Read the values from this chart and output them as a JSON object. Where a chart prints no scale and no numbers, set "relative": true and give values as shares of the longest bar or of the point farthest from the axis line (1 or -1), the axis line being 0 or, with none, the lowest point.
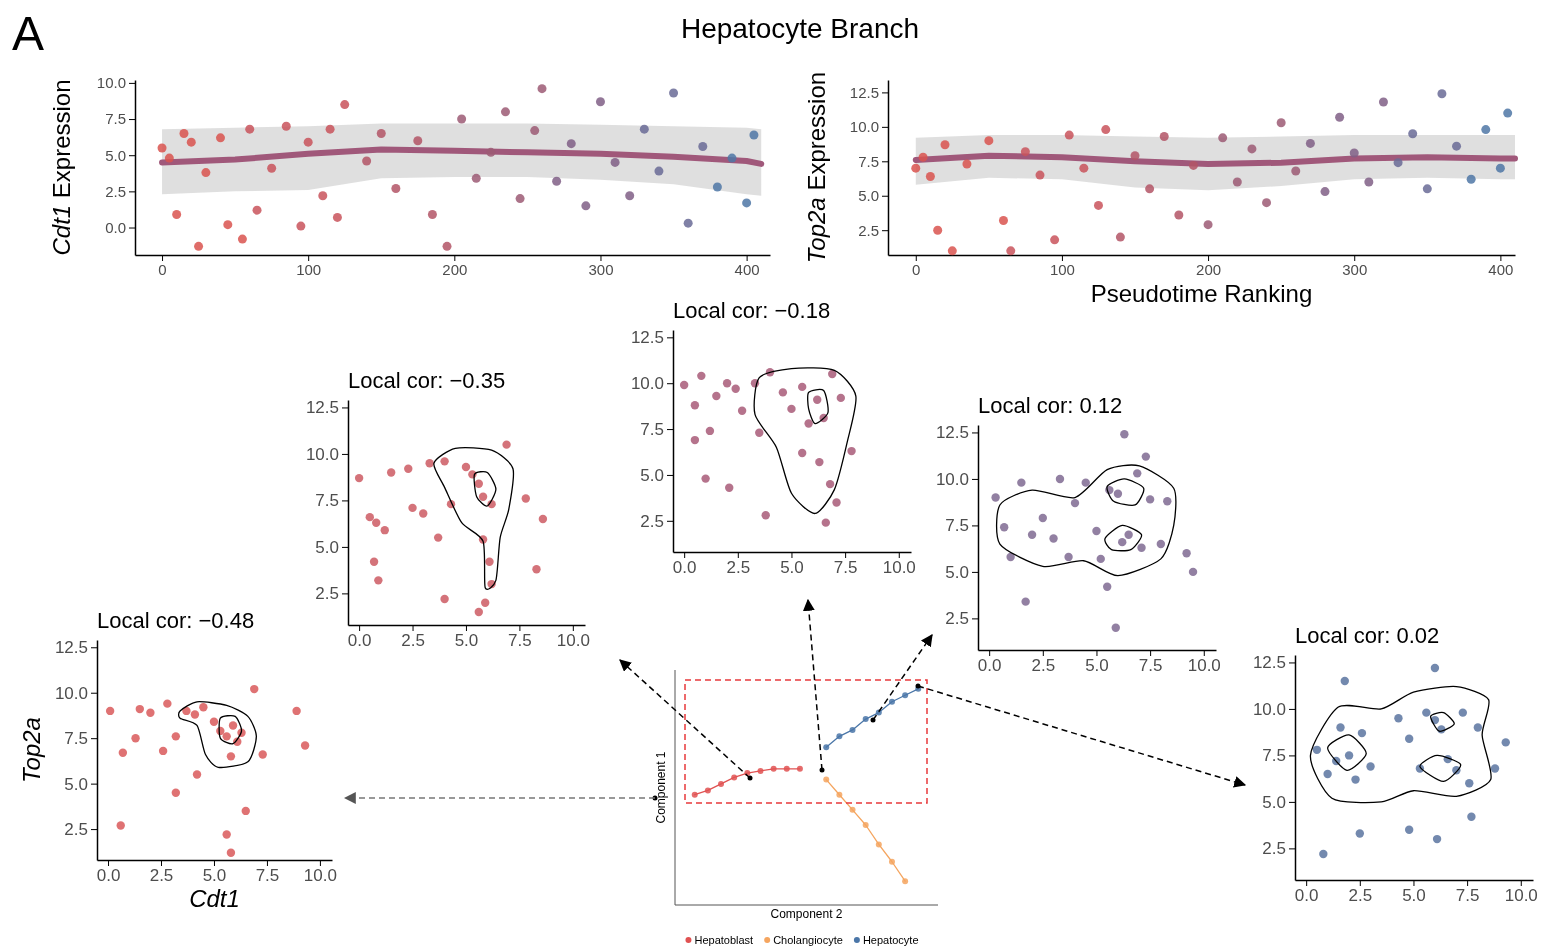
{
  "chart_data": [
    {
      "type": "scatter",
      "title": "Hepatocyte Branch",
      "ylabel": "Cdt1 Expression",
      "annotations": [
        "A"
      ],
      "xlim": [
        -18.5,
        416
      ],
      "xticks": [
        0,
        100,
        200,
        300,
        400
      ],
      "ylim": [
        -1.9,
        10.2
      ],
      "yticks": [
        {
          "value": 0,
          "label": "0.0"
        },
        {
          "value": 2.5,
          "label": "2.5"
        },
        {
          "value": 5,
          "label": "5.0"
        },
        {
          "value": 7.5,
          "label": "7.5"
        },
        {
          "value": 10,
          "label": "10.0"
        }
      ],
      "marker": "circle",
      "series": [
        {
          "type": "scatter",
          "x": [
            0,
            5,
            10,
            15,
            20,
            25,
            30,
            40,
            45,
            55,
            60,
            65,
            75,
            85,
            95,
            100,
            110,
            115,
            120,
            125,
            140,
            150,
            160,
            175,
            185,
            195,
            205,
            215,
            225,
            235,
            245,
            255,
            260,
            270,
            280,
            290,
            300,
            310,
            320,
            330,
            340,
            350,
            360,
            370,
            380,
            390,
            400,
            405
          ],
          "values": [
            5.5,
            4.8,
            0.9,
            6.5,
            5.9,
            -1.3,
            3.8,
            6.2,
            0.2,
            -0.8,
            6.8,
            1.2,
            4.1,
            7.0,
            0.1,
            5.9,
            2.2,
            6.8,
            0.7,
            8.5,
            4.6,
            6.5,
            2.7,
            6.0,
            0.9,
            -1.3,
            7.5,
            3.4,
            5.2,
            8.0,
            2.0,
            6.7,
            9.6,
            3.2,
            5.8,
            1.5,
            8.7,
            4.5,
            2.2,
            6.8,
            3.9,
            9.3,
            0.3,
            5.6,
            2.8,
            4.8,
            1.7,
            6.4
          ],
          "colors": [
            "#d9534f",
            "#d9534f",
            "#d9534f",
            "#d9534f",
            "#d9534f",
            "#d9534f",
            "#d9534f",
            "#d9534f",
            "#d9534f",
            "#d9534f",
            "#c9545c",
            "#c9545c",
            "#c9545c",
            "#c9545c",
            "#c9545c",
            "#c9545c",
            "#c9545c",
            "#c9545c",
            "#c9545c",
            "#c9545c",
            "#b35566",
            "#b35566",
            "#b35566",
            "#b35566",
            "#b35566",
            "#b35566",
            "#9c5a74",
            "#9c5a74",
            "#9c5a74",
            "#9c5a74",
            "#9c5a74",
            "#9c5a74",
            "#9c5a74",
            "#805f86",
            "#805f86",
            "#805f86",
            "#805f86",
            "#805f86",
            "#805f86",
            "#6a6b97",
            "#6a6b97",
            "#6a6b97",
            "#6a6b97",
            "#6a6b97",
            "#4f77a6",
            "#4f77a6",
            "#4f77a6",
            "#4f77a6"
          ]
        },
        {
          "type": "line",
          "marker": "none",
          "color": "#a0587a",
          "x": [
            0,
            50,
            100,
            150,
            200,
            250,
            300,
            350,
            400,
            410
          ],
          "values": [
            4.5,
            4.7,
            5.1,
            5.4,
            5.3,
            5.2,
            5.1,
            4.9,
            4.6,
            4.4
          ],
          "lower": [
            2.3,
            2.5,
            2.6,
            3.4,
            3.5,
            3.5,
            3.3,
            3.0,
            2.3,
            2.2
          ],
          "upper": [
            6.8,
            6.9,
            7.0,
            7.2,
            7.2,
            7.2,
            7.1,
            7.0,
            6.9,
            6.8
          ]
        }
      ]
    },
    {
      "type": "scatter",
      "xlabel": "Pseudotime Ranking",
      "ylabel": "Top2a Expression",
      "xlim": [
        -19,
        410
      ],
      "xticks": [
        0,
        100,
        200,
        300,
        400
      ],
      "ylim": [
        0.7,
        13.4
      ],
      "yticks": [
        {
          "value": 2.5,
          "label": "2.5"
        },
        {
          "value": 5,
          "label": "5.0"
        },
        {
          "value": 7.5,
          "label": "7.5"
        },
        {
          "value": 10,
          "label": "10.0"
        },
        {
          "value": 12.5,
          "label": "12.5"
        }
      ],
      "marker": "circle",
      "series": [
        {
          "type": "scatter",
          "x": [
            0,
            5,
            10,
            15,
            20,
            25,
            35,
            50,
            60,
            65,
            75,
            85,
            95,
            105,
            115,
            125,
            130,
            140,
            150,
            160,
            170,
            180,
            190,
            200,
            210,
            220,
            230,
            240,
            250,
            260,
            270,
            280,
            290,
            300,
            310,
            320,
            330,
            340,
            350,
            360,
            370,
            380,
            390,
            400,
            405
          ],
          "values": [
            7.0,
            7.8,
            6.4,
            2.5,
            8.7,
            1.0,
            7.3,
            9.0,
            3.2,
            1.0,
            8.2,
            6.5,
            1.8,
            9.4,
            7.0,
            4.3,
            9.8,
            2.0,
            7.9,
            5.5,
            9.3,
            3.6,
            7.2,
            2.9,
            9.2,
            6.0,
            8.4,
            4.5,
            10.3,
            6.8,
            8.8,
            5.3,
            10.7,
            8.1,
            6.0,
            11.8,
            7.4,
            9.5,
            5.5,
            12.4,
            8.6,
            6.2,
            9.8,
            7.0,
            11.0
          ],
          "colors": [
            "#d9534f",
            "#d9534f",
            "#d9534f",
            "#d9534f",
            "#d9534f",
            "#d9534f",
            "#d9534f",
            "#d9534f",
            "#d9534f",
            "#c9545c",
            "#c9545c",
            "#c9545c",
            "#c9545c",
            "#c9545c",
            "#c9545c",
            "#c9545c",
            "#c9545c",
            "#b35566",
            "#b35566",
            "#b35566",
            "#b35566",
            "#b35566",
            "#b35566",
            "#9c5a74",
            "#9c5a74",
            "#9c5a74",
            "#9c5a74",
            "#9c5a74",
            "#9c5a74",
            "#9c5a74",
            "#805f86",
            "#805f86",
            "#805f86",
            "#805f86",
            "#805f86",
            "#805f86",
            "#6a6b97",
            "#6a6b97",
            "#6a6b97",
            "#6a6b97",
            "#6a6b97",
            "#4f77a6",
            "#4f77a6",
            "#4f77a6",
            "#4f77a6"
          ]
        },
        {
          "type": "line",
          "marker": "none",
          "color": "#a0587a",
          "x": [
            0,
            50,
            100,
            150,
            200,
            250,
            300,
            350,
            400,
            410
          ],
          "values": [
            7.6,
            7.9,
            7.8,
            7.5,
            7.3,
            7.4,
            7.7,
            7.8,
            7.7,
            7.7
          ],
          "lower": [
            5.8,
            6.3,
            6.2,
            5.6,
            5.4,
            5.7,
            6.2,
            6.3,
            6.2,
            6.2
          ],
          "upper": [
            9.2,
            9.4,
            9.4,
            9.3,
            9.2,
            9.3,
            9.4,
            9.4,
            9.4,
            9.4
          ]
        }
      ]
    },
    {
      "type": "scatter",
      "title": "Local cor: −0.48",
      "xlabel": "Cdt1",
      "ylabel": "Top2a",
      "xlim": [
        -0.52,
        10.57
      ],
      "xticks": [
        {
          "value": 0,
          "label": "0.0"
        },
        {
          "value": 2.5,
          "label": "2.5"
        },
        {
          "value": 5,
          "label": "5.0"
        },
        {
          "value": 7.5,
          "label": "7.5"
        },
        {
          "value": 10,
          "label": "10.0"
        }
      ],
      "ylim": [
        0.8,
        12.9
      ],
      "yticks": [
        {
          "value": 2.5,
          "label": "2.5"
        },
        {
          "value": 5,
          "label": "5.0"
        },
        {
          "value": 7.5,
          "label": "7.5"
        },
        {
          "value": 10,
          "label": "10.0"
        },
        {
          "value": 12.5,
          "label": "12.5"
        }
      ],
      "marker": "circle",
      "series": [
        {
          "type": "scatter",
          "color": "#d9595a",
          "x": [
            0.1,
            0.7,
            0.6,
            1.5,
            2.0,
            2.8,
            3.2,
            3.7,
            4.1,
            4.5,
            5.0,
            5.3,
            5.6,
            5.9,
            6.1,
            5.8,
            6.3,
            5.6,
            5.8,
            4.2,
            3.2,
            6.9,
            7.3,
            8.9,
            9.3,
            6.5,
            1.3,
            2.6
          ],
          "values": [
            9.0,
            6.7,
            2.7,
            9.1,
            8.9,
            9.4,
            7.6,
            9.0,
            8.8,
            9.2,
            8.4,
            7.9,
            7.6,
            8.2,
            7.3,
            6.5,
            7.8,
            2.2,
            1.2,
            5.5,
            4.5,
            10.2,
            6.6,
            9.0,
            7.1,
            3.5,
            7.5,
            6.8
          ]
        }
      ]
    },
    {
      "type": "scatter",
      "title": "Local cor: −0.35",
      "xlim": [
        -0.52,
        10.57
      ],
      "xticks": [
        {
          "value": 0,
          "label": "0.0"
        },
        {
          "value": 2.5,
          "label": "2.5"
        },
        {
          "value": 5,
          "label": "5.0"
        },
        {
          "value": 7.5,
          "label": "7.5"
        },
        {
          "value": 10,
          "label": "10.0"
        }
      ],
      "ylim": [
        0.8,
        12.9
      ],
      "yticks": [
        {
          "value": 2.5,
          "label": "2.5"
        },
        {
          "value": 5,
          "label": "5.0"
        },
        {
          "value": 7.5,
          "label": "7.5"
        },
        {
          "value": 10,
          "label": "10.0"
        },
        {
          "value": 12.5,
          "label": "12.5"
        }
      ],
      "marker": "circle",
      "series": [
        {
          "type": "scatter",
          "color": "#cc5b63",
          "x": [
            0.0,
            0.5,
            0.8,
            1.2,
            0.7,
            1.5,
            2.3,
            2.5,
            3.0,
            3.3,
            3.7,
            4.0,
            4.3,
            5.0,
            5.3,
            5.6,
            5.8,
            6.2,
            5.8,
            6.1,
            6.2,
            5.9,
            5.6,
            7.8,
            8.6,
            8.3,
            4.0,
            0.9,
            6.9
          ],
          "values": [
            8.7,
            6.6,
            6.3,
            5.9,
            4.2,
            9.0,
            9.2,
            7.1,
            6.8,
            9.5,
            5.5,
            9.6,
            7.3,
            9.3,
            8.9,
            8.4,
            7.7,
            7.3,
            5.4,
            4.2,
            3.0,
            2.0,
            1.5,
            7.6,
            6.5,
            3.8,
            2.2,
            3.2,
            10.5
          ]
        }
      ]
    },
    {
      "type": "scatter",
      "title": "Local cor: −0.18",
      "xlim": [
        -0.52,
        10.57
      ],
      "xticks": [
        {
          "value": 0,
          "label": "0.0"
        },
        {
          "value": 2.5,
          "label": "2.5"
        },
        {
          "value": 5,
          "label": "5.0"
        },
        {
          "value": 7.5,
          "label": "7.5"
        },
        {
          "value": 10,
          "label": "10.0"
        }
      ],
      "ylim": [
        0.8,
        12.9
      ],
      "yticks": [
        {
          "value": 2.5,
          "label": "2.5"
        },
        {
          "value": 5,
          "label": "5.0"
        },
        {
          "value": 7.5,
          "label": "7.5"
        },
        {
          "value": 10,
          "label": "10.0"
        },
        {
          "value": 12.5,
          "label": "12.5"
        }
      ],
      "marker": "circle",
      "series": [
        {
          "type": "scatter",
          "color": "#a85a78",
          "x": [
            0.0,
            0.5,
            0.8,
            1.2,
            1.5,
            2.0,
            0.5,
            1.0,
            2.4,
            2.7,
            3.3,
            3.5,
            4.0,
            4.6,
            5.0,
            5.5,
            5.8,
            6.2,
            6.5,
            6.9,
            7.3,
            6.3,
            6.8,
            6.6,
            3.8,
            5.5,
            7.8,
            7.1,
            2.1
          ],
          "values": [
            9.9,
            8.8,
            10.4,
            7.4,
            9.3,
            10.0,
            6.9,
            4.8,
            9.7,
            8.5,
            10.0,
            7.3,
            10.6,
            9.5,
            8.6,
            9.8,
            7.8,
            9.1,
            8.1,
            10.5,
            9.2,
            5.7,
            4.5,
            2.4,
            2.8,
            6.2,
            6.3,
            3.5,
            4.3
          ]
        }
      ]
    },
    {
      "type": "scatter",
      "title": "Local cor: 0.12",
      "xlim": [
        -0.52,
        10.57
      ],
      "xticks": [
        {
          "value": 0,
          "label": "0.0"
        },
        {
          "value": 2.5,
          "label": "2.5"
        },
        {
          "value": 5,
          "label": "5.0"
        },
        {
          "value": 7.5,
          "label": "7.5"
        },
        {
          "value": 10,
          "label": "10.0"
        }
      ],
      "ylim": [
        0.8,
        12.9
      ],
      "yticks": [
        {
          "value": 2.5,
          "label": "2.5"
        },
        {
          "value": 5,
          "label": "5.0"
        },
        {
          "value": 7.5,
          "label": "7.5"
        },
        {
          "value": 10,
          "label": "10.0"
        },
        {
          "value": 12.5,
          "label": "12.5"
        }
      ],
      "marker": "circle",
      "series": [
        {
          "type": "scatter",
          "color": "#7f6a92",
          "x": [
            0.3,
            0.7,
            1.0,
            1.5,
            2.0,
            2.5,
            3.0,
            3.3,
            3.7,
            4.0,
            4.5,
            5.0,
            5.2,
            5.6,
            6.0,
            6.2,
            6.5,
            6.9,
            7.1,
            7.5,
            8.0,
            8.3,
            9.2,
            9.5,
            6.3,
            7.3,
            1.7,
            5.5,
            5.9
          ],
          "values": [
            9.0,
            7.4,
            5.8,
            9.8,
            7.0,
            7.9,
            6.8,
            10.0,
            5.8,
            8.7,
            9.8,
            7.2,
            5.7,
            9.4,
            9.2,
            6.6,
            7.0,
            10.3,
            6.3,
            8.9,
            6.5,
            8.8,
            6.0,
            5.0,
            12.4,
            11.2,
            3.4,
            4.2,
            2.0
          ]
        }
      ]
    },
    {
      "type": "scatter",
      "title": "Local cor: 0.02",
      "xlim": [
        -0.52,
        10.57
      ],
      "xticks": [
        {
          "value": 0,
          "label": "0.0"
        },
        {
          "value": 2.5,
          "label": "2.5"
        },
        {
          "value": 5,
          "label": "5.0"
        },
        {
          "value": 7.5,
          "label": "7.5"
        },
        {
          "value": 10,
          "label": "10.0"
        }
      ],
      "ylim": [
        0.8,
        12.9
      ],
      "yticks": [
        {
          "value": 2.5,
          "label": "2.5"
        },
        {
          "value": 5,
          "label": "5.0"
        },
        {
          "value": 7.5,
          "label": "7.5"
        },
        {
          "value": 10,
          "label": "10.0"
        },
        {
          "value": 12.5,
          "label": "12.5"
        }
      ],
      "marker": "circle",
      "series": [
        {
          "type": "scatter",
          "color": "#5a74a0",
          "x": [
            0.5,
            1.0,
            1.4,
            1.6,
            2.0,
            2.3,
            2.6,
            3.0,
            1.8,
            4.3,
            4.8,
            5.3,
            5.6,
            6.0,
            6.3,
            6.6,
            7.0,
            7.3,
            7.6,
            8.0,
            8.8,
            9.3,
            6.0,
            4.8,
            6.1,
            2.5,
            7.7,
            0.8
          ],
          "values": [
            7.8,
            6.5,
            7.2,
            9.0,
            7.5,
            6.2,
            8.7,
            6.9,
            11.5,
            9.5,
            8.4,
            6.8,
            9.8,
            9.4,
            8.9,
            7.3,
            6.7,
            9.8,
            6.0,
            9.0,
            6.8,
            8.2,
            12.2,
            3.5,
            3.0,
            3.3,
            4.2,
            2.2
          ]
        }
      ]
    },
    {
      "type": "line",
      "xlabel": "Component 2",
      "ylabel": "Component 1",
      "relative": true,
      "legend": "bottom",
      "marker": "circle",
      "categories": [
        null,
        null,
        null,
        null,
        null,
        null,
        null,
        null,
        null,
        null,
        null,
        null,
        null,
        null,
        null,
        null,
        null,
        null,
        null,
        null
      ],
      "series": [
        {
          "name": "Hepatoblast",
          "color": "#e05252",
          "values": [
            null,
            0.51,
            0.53,
            0.56,
            0.59,
            0.61,
            0.62,
            0.63,
            0.63,
            0.63,
            null,
            null,
            null,
            null,
            null,
            null,
            null,
            null,
            null,
            null
          ]
        },
        {
          "name": "Cholangiocyte",
          "color": "#f5a55f",
          "values": [
            null,
            null,
            null,
            null,
            null,
            null,
            null,
            null,
            null,
            null,
            null,
            0.58,
            0.51,
            0.44,
            0.37,
            0.28,
            0.2,
            0.11,
            null,
            null
          ]
        },
        {
          "name": "Hepatocyte",
          "color": "#4a76a8",
          "values": [
            null,
            null,
            null,
            null,
            null,
            null,
            null,
            null,
            null,
            null,
            null,
            0.73,
            0.78,
            0.81,
            0.86,
            0.89,
            0.94,
            0.97,
            1,
            null
          ]
        }
      ]
    }
  ]
}
